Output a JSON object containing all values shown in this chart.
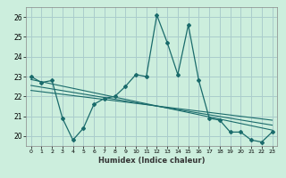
{
  "title": "",
  "xlabel": "Humidex (Indice chaleur)",
  "background_color": "#cceedd",
  "grid_color": "#aacccc",
  "line_color": "#1a6b6b",
  "xlim": [
    -0.5,
    23.5
  ],
  "ylim": [
    19.5,
    26.5
  ],
  "xticks": [
    0,
    1,
    2,
    3,
    4,
    5,
    6,
    7,
    8,
    9,
    10,
    11,
    12,
    13,
    14,
    15,
    16,
    17,
    18,
    19,
    20,
    21,
    22,
    23
  ],
  "yticks": [
    20,
    21,
    22,
    23,
    24,
    25,
    26
  ],
  "series1_x": [
    0,
    1,
    2,
    3,
    4,
    5,
    6,
    7,
    8,
    9,
    10,
    11,
    12,
    13,
    14,
    15,
    16,
    17,
    18,
    19,
    20,
    21,
    22,
    23
  ],
  "series1_y": [
    23.0,
    22.7,
    22.8,
    20.9,
    19.8,
    20.4,
    21.6,
    21.9,
    22.0,
    22.5,
    23.1,
    23.0,
    26.1,
    24.7,
    23.1,
    25.6,
    22.8,
    20.9,
    20.8,
    20.2,
    20.2,
    19.8,
    19.7,
    20.2
  ],
  "series2_x": [
    0,
    23
  ],
  "series2_y": [
    22.85,
    20.3
  ],
  "series3_x": [
    0,
    23
  ],
  "series3_y": [
    22.55,
    20.55
  ],
  "series4_x": [
    0,
    23
  ],
  "series4_y": [
    22.3,
    20.8
  ]
}
